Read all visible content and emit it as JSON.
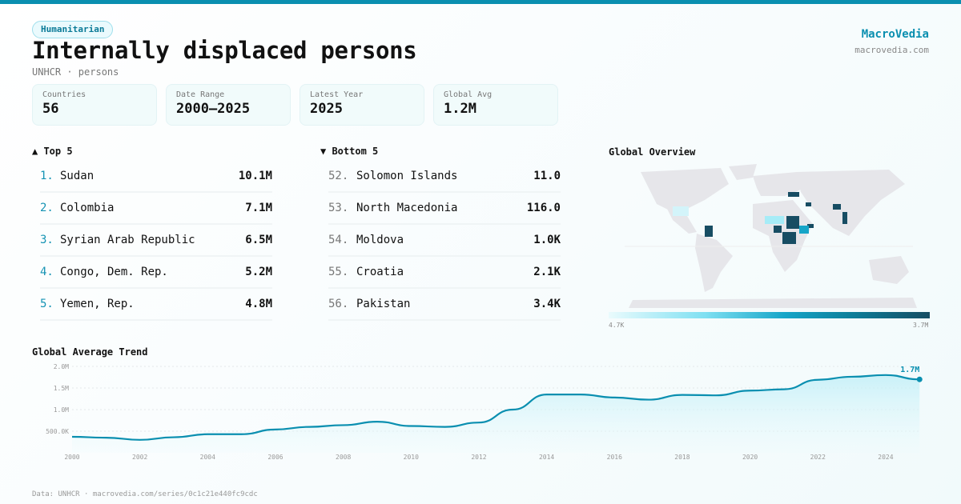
{
  "header": {
    "badge": "Humanitarian",
    "title": "Internally displaced persons",
    "subtitle": "UNHCR · persons",
    "brand": "MacroVedia",
    "brand_url": "macrovedia.com"
  },
  "stats": [
    {
      "label": "Countries",
      "value": "56"
    },
    {
      "label": "Date Range",
      "value": "2000–2025"
    },
    {
      "label": "Latest Year",
      "value": "2025"
    },
    {
      "label": "Global Avg",
      "value": "1.2M"
    }
  ],
  "top5": {
    "title": "▲ Top 5",
    "items": [
      {
        "rank": "1.",
        "name": "Sudan",
        "value": "10.1M"
      },
      {
        "rank": "2.",
        "name": "Colombia",
        "value": "7.1M"
      },
      {
        "rank": "3.",
        "name": "Syrian Arab Republic",
        "value": "6.5M"
      },
      {
        "rank": "4.",
        "name": "Congo, Dem. Rep.",
        "value": "5.2M"
      },
      {
        "rank": "5.",
        "name": "Yemen, Rep.",
        "value": "4.8M"
      }
    ]
  },
  "bottom5": {
    "title": "▼ Bottom 5",
    "items": [
      {
        "rank": "52.",
        "name": "Solomon Islands",
        "value": "11.0"
      },
      {
        "rank": "53.",
        "name": "North Macedonia",
        "value": "116.0"
      },
      {
        "rank": "54.",
        "name": "Moldova",
        "value": "1.0K"
      },
      {
        "rank": "55.",
        "name": "Croatia",
        "value": "2.1K"
      },
      {
        "rank": "56.",
        "name": "Pakistan",
        "value": "3.4K"
      }
    ]
  },
  "map": {
    "title": "Global Overview",
    "legend_min": "4.7K",
    "legend_max": "3.7M",
    "colors": {
      "low": "#eafbfd",
      "high": "#174d63",
      "land": "#e6e6ea"
    }
  },
  "footer": "Data: UNHCR · macrovedia.com/series/0c1c21e440fc9cdc",
  "chart_data": {
    "type": "area",
    "title": "Global Average Trend",
    "x": [
      2000,
      2001,
      2002,
      2003,
      2004,
      2005,
      2006,
      2007,
      2008,
      2009,
      2010,
      2011,
      2012,
      2013,
      2014,
      2015,
      2016,
      2017,
      2018,
      2019,
      2020,
      2021,
      2022,
      2023,
      2024,
      2025
    ],
    "values": [
      370000,
      350000,
      300000,
      360000,
      430000,
      430000,
      540000,
      600000,
      640000,
      720000,
      620000,
      600000,
      700000,
      1000000,
      1350000,
      1350000,
      1280000,
      1230000,
      1340000,
      1330000,
      1440000,
      1470000,
      1690000,
      1760000,
      1800000,
      1700000
    ],
    "yticks": [
      "500.0K",
      "1.0M",
      "1.5M",
      "2.0M"
    ],
    "ytick_values": [
      500000,
      1000000,
      1500000,
      2000000
    ],
    "xticks": [
      "2000",
      "2002",
      "2004",
      "2006",
      "2008",
      "2010",
      "2012",
      "2014",
      "2016",
      "2018",
      "2020",
      "2022",
      "2024"
    ],
    "ylim": [
      0,
      2000000
    ],
    "last_label": "1.7M",
    "grid": true,
    "color": "#0a8fb0"
  }
}
